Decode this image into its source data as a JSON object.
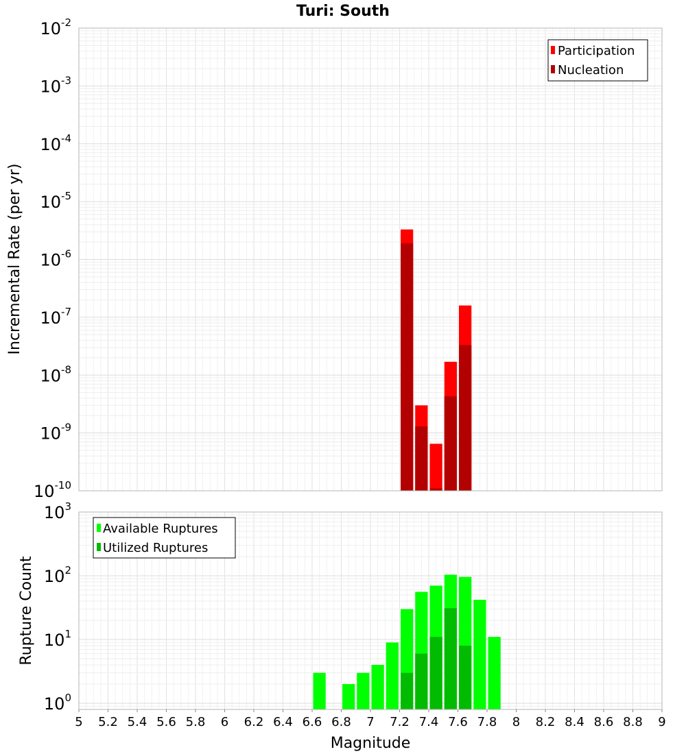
{
  "chart_data": [
    {
      "type": "bar",
      "title": "Turi: South",
      "xlabel": "",
      "ylabel": "Incremental Rate (per yr)",
      "y_scale": "log",
      "ylim": [
        1e-10,
        0.01
      ],
      "xlim": [
        5,
        9
      ],
      "grid": true,
      "legend_position": "top-right",
      "bin_width": 0.1,
      "y_ticks": [
        {
          "base": "10",
          "exp": "-2",
          "value": 0.01
        },
        {
          "base": "10",
          "exp": "-3",
          "value": 0.001
        },
        {
          "base": "10",
          "exp": "-4",
          "value": 0.0001
        },
        {
          "base": "10",
          "exp": "-5",
          "value": 1e-05
        },
        {
          "base": "10",
          "exp": "-6",
          "value": 1e-06
        },
        {
          "base": "10",
          "exp": "-7",
          "value": 1e-07
        },
        {
          "base": "10",
          "exp": "-8",
          "value": 1e-08
        },
        {
          "base": "10",
          "exp": "-9",
          "value": 1e-09
        },
        {
          "base": "10",
          "exp": "-10",
          "value": 1e-10
        }
      ],
      "x": [
        7.25,
        7.35,
        7.45,
        7.55,
        7.65
      ],
      "series": [
        {
          "name": "Participation",
          "color": "#ff0000",
          "values": [
            3.3e-06,
            3e-09,
            6.5e-10,
            1.7e-08,
            1.6e-07
          ]
        },
        {
          "name": "Nucleation",
          "color": "#b30000",
          "values": [
            1.9e-06,
            1.3e-09,
            1.1e-10,
            4.3e-09,
            3.3e-08
          ]
        }
      ]
    },
    {
      "type": "bar",
      "title": "",
      "xlabel": "Magnitude",
      "ylabel": "Rupture Count",
      "y_scale": "log",
      "ylim": [
        0.8,
        1000
      ],
      "xlim": [
        5,
        9
      ],
      "grid": true,
      "legend_position": "top-left",
      "bin_width": 0.1,
      "y_ticks": [
        {
          "base": "10",
          "exp": "3",
          "value": 1000
        },
        {
          "base": "10",
          "exp": "2",
          "value": 100
        },
        {
          "base": "10",
          "exp": "1",
          "value": 10
        },
        {
          "base": "10",
          "exp": "0",
          "value": 1
        }
      ],
      "x_ticks": [
        "5",
        "5.2",
        "5.4",
        "5.6",
        "5.8",
        "6",
        "6.2",
        "6.4",
        "6.6",
        "6.8",
        "7",
        "7.2",
        "7.4",
        "7.6",
        "7.8",
        "8",
        "8.2",
        "8.4",
        "8.6",
        "8.8",
        "9"
      ],
      "x": [
        6.65,
        6.85,
        6.95,
        7.05,
        7.15,
        7.25,
        7.35,
        7.45,
        7.55,
        7.65,
        7.75,
        7.85
      ],
      "series": [
        {
          "name": "Available Ruptures",
          "color": "#00ff00",
          "values": [
            3,
            2,
            3,
            4,
            9,
            30,
            56,
            70,
            104,
            96,
            42,
            11
          ]
        },
        {
          "name": "Utilized Ruptures",
          "color": "#00bb00",
          "values": [
            null,
            null,
            null,
            null,
            null,
            3,
            6,
            11,
            31,
            8,
            null,
            null
          ]
        }
      ]
    }
  ]
}
